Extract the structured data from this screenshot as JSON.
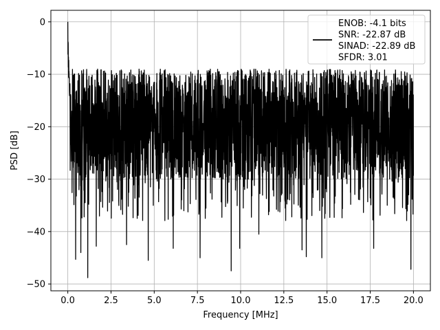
{
  "chart_data": {
    "type": "line",
    "title": "",
    "xlabel": "Frequency [MHz]",
    "ylabel": "PSD [dB]",
    "xlim": [
      -0.98,
      20.98
    ],
    "ylim": [
      -51.3,
      2.2
    ],
    "x_ticks": [
      0.0,
      2.5,
      5.0,
      7.5,
      10.0,
      12.5,
      15.0,
      17.5,
      20.0
    ],
    "x_tick_labels": [
      "0.0",
      "2.5",
      "5.0",
      "7.5",
      "10.0",
      "12.5",
      "15.0",
      "17.5",
      "20.0"
    ],
    "y_ticks": [
      0,
      -10,
      -20,
      -30,
      -40,
      -50
    ],
    "y_tick_labels": [
      "0",
      "−10",
      "−20",
      "−30",
      "−40",
      "−50"
    ],
    "grid": true,
    "legend": {
      "location": "upper-right",
      "entries": [
        "ENOB: -4.1 bits",
        "SNR: -22.87 dB",
        "SINAD: -22.89 dB",
        "SFDR: 3.01"
      ]
    },
    "series": [
      {
        "color": "#000000",
        "x_start": 0.0,
        "x_end": 20.0,
        "peak": {
          "x": 0.0,
          "y": 0.0
        },
        "upper_envelope": -9,
        "median_level": -19,
        "lower_envelope": -30,
        "deep_nulls": [
          {
            "x": 0.45,
            "y": -45.3
          },
          {
            "x": 0.75,
            "y": -44.0
          },
          {
            "x": 1.15,
            "y": -48.8
          },
          {
            "x": 1.65,
            "y": -42.8
          },
          {
            "x": 3.4,
            "y": -42.5
          },
          {
            "x": 4.65,
            "y": -45.5
          },
          {
            "x": 6.1,
            "y": -43.2
          },
          {
            "x": 7.65,
            "y": -45.0
          },
          {
            "x": 9.45,
            "y": -47.5
          },
          {
            "x": 9.95,
            "y": -43.2
          },
          {
            "x": 11.05,
            "y": -40.5
          },
          {
            "x": 13.55,
            "y": -43.5
          },
          {
            "x": 13.8,
            "y": -44.8
          },
          {
            "x": 14.7,
            "y": -45.0
          },
          {
            "x": 17.7,
            "y": -43.2
          },
          {
            "x": 19.85,
            "y": -47.2
          }
        ]
      }
    ]
  }
}
